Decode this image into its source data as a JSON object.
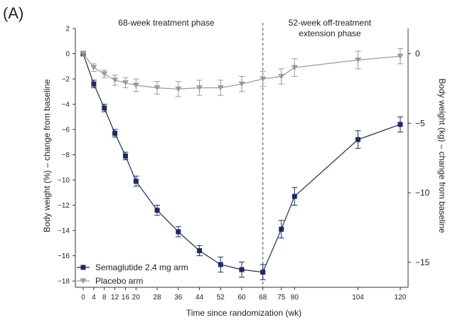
{
  "chart_data": {
    "type": "line",
    "panel_label": "(A)",
    "phase_labels": {
      "treatment": "68-week treatment phase",
      "extension_line1": "52-week off-treatment",
      "extension_line2": "extension phase"
    },
    "xlabel": "Time since randomization (wk)",
    "ylabel_left": "Body weight (%) – change from baseline",
    "ylabel_right": "Body weight (kg) – change from baseline",
    "x_ticks": [
      0,
      4,
      8,
      12,
      16,
      20,
      28,
      36,
      44,
      52,
      60,
      68,
      75,
      80,
      104,
      120
    ],
    "y_ticks_left": [
      2,
      0,
      -2,
      -4,
      -6,
      -8,
      -10,
      -12,
      -14,
      -16,
      -18
    ],
    "y_ticks_right": [
      0,
      -5,
      -10,
      -15
    ],
    "ylim_left": [
      -18.5,
      2
    ],
    "ylim_right_kg": [
      -16.8,
      1.82
    ],
    "divider_week": 68,
    "series": [
      {
        "name": "Semaglutide 2.4 mg arm",
        "color": "#1f2a5c",
        "marker": "square",
        "x": [
          0,
          4,
          8,
          12,
          16,
          20,
          28,
          36,
          44,
          52,
          60,
          68,
          75,
          80,
          104,
          120
        ],
        "y": [
          0,
          -2.4,
          -4.3,
          -6.3,
          -8.1,
          -10.1,
          -12.4,
          -14.1,
          -15.6,
          -16.7,
          -17.1,
          -17.3,
          -13.9,
          -11.3,
          -6.8,
          -5.6
        ],
        "err": [
          0.2,
          0.3,
          0.3,
          0.3,
          0.3,
          0.4,
          0.4,
          0.4,
          0.4,
          0.6,
          0.6,
          0.6,
          0.7,
          0.7,
          0.7,
          0.6
        ]
      },
      {
        "name": "Placebo arm",
        "color": "#9a9a9a",
        "marker": "triangle-down",
        "x": [
          0,
          4,
          8,
          12,
          16,
          20,
          28,
          36,
          44,
          52,
          60,
          68,
          75,
          80,
          104,
          120
        ],
        "y": [
          0,
          -1.1,
          -1.6,
          -2.1,
          -2.3,
          -2.5,
          -2.7,
          -2.8,
          -2.7,
          -2.7,
          -2.4,
          -2.0,
          -1.8,
          -1.1,
          -0.5,
          -0.2
        ],
        "err": [
          0.2,
          0.3,
          0.3,
          0.4,
          0.4,
          0.5,
          0.5,
          0.6,
          0.6,
          0.6,
          0.6,
          0.6,
          0.6,
          0.7,
          0.7,
          0.6
        ]
      }
    ],
    "legend_position": "bottom-left",
    "grid": false
  }
}
